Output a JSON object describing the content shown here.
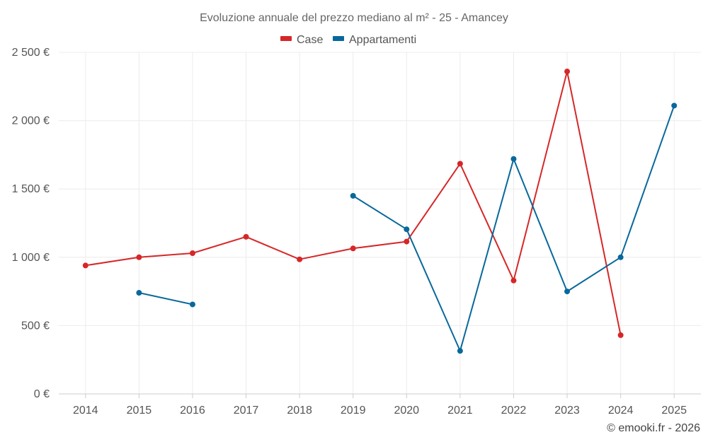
{
  "chart_data": {
    "type": "line",
    "title": "Evoluzione annuale del prezzo mediano al m² - 25 - Amancey",
    "categories": [
      "2014",
      "2015",
      "2016",
      "2017",
      "2018",
      "2019",
      "2020",
      "2021",
      "2022",
      "2023",
      "2024",
      "2025"
    ],
    "ylim": [
      0,
      2500
    ],
    "yticks": [
      0,
      500,
      1000,
      1500,
      2000,
      2500
    ],
    "ytick_labels": [
      "0 €",
      "500 €",
      "1 000 €",
      "1 500 €",
      "2 000 €",
      "2 500 €"
    ],
    "grid": true,
    "legend_position": "top-center",
    "series": [
      {
        "name": "Case",
        "color": "#d62728",
        "values": [
          940,
          1000,
          1030,
          1150,
          985,
          1065,
          1115,
          1685,
          830,
          2360,
          430,
          null
        ]
      },
      {
        "name": "Appartamenti",
        "color": "#08689c",
        "values": [
          null,
          740,
          655,
          null,
          null,
          1450,
          1205,
          315,
          1720,
          750,
          1000,
          2110
        ]
      }
    ],
    "credit": "© emooki.fr - 2026"
  }
}
